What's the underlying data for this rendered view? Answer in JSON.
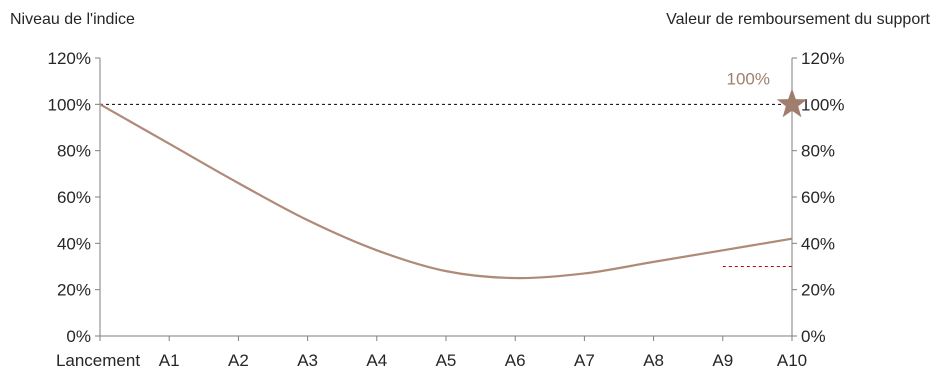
{
  "chart_data": {
    "type": "line",
    "title": "",
    "ylabel_left": "Niveau de l'indice",
    "ylabel_right": "Valeur de remboursement du support",
    "categories": [
      "Lancement",
      "A1",
      "A2",
      "A3",
      "A4",
      "A5",
      "A6",
      "A7",
      "A8",
      "A9",
      "A10"
    ],
    "y_ticks": [
      "0%",
      "20%",
      "40%",
      "60%",
      "80%",
      "100%",
      "120%"
    ],
    "ylim": [
      0,
      120
    ],
    "grid": false,
    "series": [
      {
        "values": [
          100,
          83,
          66,
          50,
          37,
          28,
          25,
          27,
          32,
          37,
          42
        ],
        "color": "#b08a78"
      }
    ],
    "reference_line": {
      "value": 100,
      "style": "dashed",
      "color": "#000000"
    },
    "barrier_line": {
      "value": 30,
      "from_category": "A9",
      "to_category": "A10",
      "style": "dashed",
      "color": "#c00000"
    },
    "marker": {
      "category": "A10",
      "value": 100,
      "shape": "star",
      "color": "#a07e6e",
      "label": "100%"
    },
    "colors": {
      "axis": "#7f7f7f",
      "series": "#b08a78",
      "annotation": "#a07e6e"
    }
  }
}
